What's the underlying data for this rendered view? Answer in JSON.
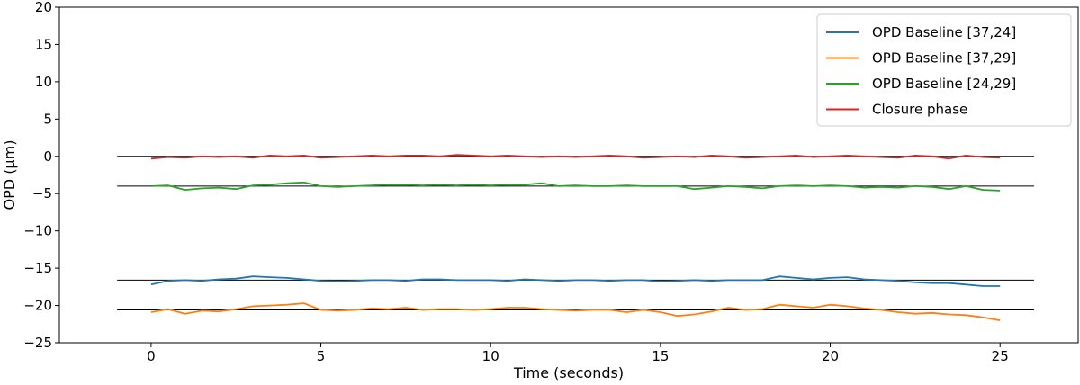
{
  "chart_data": {
    "type": "line",
    "xlabel": "Time (seconds)",
    "ylabel": "OPD (μm)",
    "xlim": [
      -2.7,
      27.3
    ],
    "ylim": [
      -25,
      20
    ],
    "xticks": [
      "0",
      "5",
      "10",
      "15",
      "20",
      "25"
    ],
    "xtick_values": [
      0,
      5,
      10,
      15,
      20,
      25
    ],
    "yticks": [
      "20",
      "15",
      "10",
      "5",
      "0",
      "−5",
      "−10",
      "−15",
      "−20",
      "−25"
    ],
    "ytick_values": [
      20,
      15,
      10,
      5,
      0,
      -5,
      -10,
      -15,
      -20,
      -25
    ],
    "grid": false,
    "legend_position": "top-right",
    "reference_lines": [
      {
        "y": 0,
        "x_range": [
          -1,
          26
        ],
        "color": "#000000"
      },
      {
        "y": -4,
        "x_range": [
          -1,
          26
        ],
        "color": "#000000"
      },
      {
        "y": -16.6,
        "x_range": [
          -1,
          26
        ],
        "color": "#000000"
      },
      {
        "y": -20.6,
        "x_range": [
          -1,
          26
        ],
        "color": "#000000"
      }
    ],
    "series": [
      {
        "name": "OPD Baseline [37,24]",
        "color": "#1f77b4",
        "x": [
          0,
          0.5,
          1,
          1.5,
          2,
          2.5,
          3,
          3.5,
          4,
          4.5,
          5,
          5.5,
          6,
          6.5,
          7,
          7.5,
          8,
          8.5,
          9,
          9.5,
          10,
          10.5,
          11,
          11.5,
          12,
          12.5,
          13,
          13.5,
          14,
          14.5,
          15,
          15.5,
          16,
          16.5,
          17,
          17.5,
          18,
          18.5,
          19,
          19.5,
          20,
          20.5,
          21,
          21.5,
          22,
          22.5,
          23,
          23.5,
          24,
          24.5,
          25
        ],
        "y": [
          -17.2,
          -16.7,
          -16.6,
          -16.7,
          -16.5,
          -16.4,
          -16.1,
          -16.2,
          -16.3,
          -16.5,
          -16.7,
          -16.8,
          -16.7,
          -16.6,
          -16.6,
          -16.7,
          -16.5,
          -16.5,
          -16.6,
          -16.6,
          -16.6,
          -16.7,
          -16.5,
          -16.6,
          -16.7,
          -16.6,
          -16.6,
          -16.7,
          -16.6,
          -16.6,
          -16.8,
          -16.7,
          -16.6,
          -16.7,
          -16.6,
          -16.6,
          -16.6,
          -16.1,
          -16.3,
          -16.5,
          -16.3,
          -16.2,
          -16.5,
          -16.6,
          -16.7,
          -16.9,
          -17.0,
          -17.0,
          -17.2,
          -17.4,
          -17.4
        ]
      },
      {
        "name": "OPD Baseline [37,29]",
        "color": "#ff7f0e",
        "x": [
          0,
          0.5,
          1,
          1.5,
          2,
          2.5,
          3,
          3.5,
          4,
          4.5,
          5,
          5.5,
          6,
          6.5,
          7,
          7.5,
          8,
          8.5,
          9,
          9.5,
          10,
          10.5,
          11,
          11.5,
          12,
          12.5,
          13,
          13.5,
          14,
          14.5,
          15,
          15.5,
          16,
          16.5,
          17,
          17.5,
          18,
          18.5,
          19,
          19.5,
          20,
          20.5,
          21,
          21.5,
          22,
          22.5,
          23,
          23.5,
          24,
          24.5,
          25
        ],
        "y": [
          -20.9,
          -20.5,
          -21.1,
          -20.7,
          -20.8,
          -20.5,
          -20.1,
          -20.0,
          -19.9,
          -19.7,
          -20.6,
          -20.7,
          -20.6,
          -20.4,
          -20.5,
          -20.3,
          -20.6,
          -20.5,
          -20.5,
          -20.6,
          -20.5,
          -20.3,
          -20.3,
          -20.5,
          -20.6,
          -20.7,
          -20.6,
          -20.6,
          -20.9,
          -20.6,
          -20.9,
          -21.4,
          -21.2,
          -20.8,
          -20.3,
          -20.6,
          -20.5,
          -19.9,
          -20.1,
          -20.3,
          -19.9,
          -20.1,
          -20.4,
          -20.6,
          -20.9,
          -21.1,
          -21.0,
          -21.2,
          -21.3,
          -21.6,
          -22.0
        ]
      },
      {
        "name": "OPD Baseline [24,29]",
        "color": "#2ca02c",
        "x": [
          0,
          0.5,
          1,
          1.5,
          2,
          2.5,
          3,
          3.5,
          4,
          4.5,
          5,
          5.5,
          6,
          6.5,
          7,
          7.5,
          8,
          8.5,
          9,
          9.5,
          10,
          10.5,
          11,
          11.5,
          12,
          12.5,
          13,
          13.5,
          14,
          14.5,
          15,
          15.5,
          16,
          16.5,
          17,
          17.5,
          18,
          18.5,
          19,
          19.5,
          20,
          20.5,
          21,
          21.5,
          22,
          22.5,
          23,
          23.5,
          24,
          24.5,
          25
        ],
        "y": [
          -4.0,
          -3.9,
          -4.5,
          -4.3,
          -4.2,
          -4.4,
          -3.9,
          -3.8,
          -3.6,
          -3.5,
          -4.0,
          -4.1,
          -4.0,
          -3.9,
          -3.8,
          -3.8,
          -3.9,
          -3.8,
          -3.9,
          -3.8,
          -3.9,
          -3.8,
          -3.8,
          -3.6,
          -4.0,
          -3.9,
          -4.0,
          -4.0,
          -3.9,
          -4.0,
          -4.0,
          -4.0,
          -4.4,
          -4.2,
          -4.0,
          -4.1,
          -4.3,
          -4.0,
          -3.9,
          -4.0,
          -3.9,
          -4.0,
          -4.2,
          -4.1,
          -4.2,
          -4.0,
          -4.1,
          -4.4,
          -4.0,
          -4.5,
          -4.6
        ]
      },
      {
        "name": "Closure phase",
        "color": "#d62728",
        "x": [
          0,
          0.5,
          1,
          1.5,
          2,
          2.5,
          3,
          3.5,
          4,
          4.5,
          5,
          5.5,
          6,
          6.5,
          7,
          7.5,
          8,
          8.5,
          9,
          9.5,
          10,
          10.5,
          11,
          11.5,
          12,
          12.5,
          13,
          13.5,
          14,
          14.5,
          15,
          15.5,
          16,
          16.5,
          17,
          17.5,
          18,
          18.5,
          19,
          19.5,
          20,
          20.5,
          21,
          21.5,
          22,
          22.5,
          23,
          23.5,
          24,
          24.5,
          25
        ],
        "y": [
          -0.3,
          -0.1,
          -0.2,
          0.0,
          -0.1,
          0.0,
          -0.2,
          0.1,
          0.0,
          0.1,
          -0.2,
          -0.1,
          0.0,
          0.1,
          0.0,
          0.1,
          0.1,
          0.0,
          0.2,
          0.1,
          0.0,
          0.1,
          0.0,
          -0.1,
          0.0,
          -0.1,
          0.0,
          0.1,
          0.0,
          -0.2,
          -0.1,
          0.0,
          -0.1,
          0.1,
          0.0,
          -0.2,
          -0.1,
          0.0,
          0.1,
          -0.1,
          0.0,
          0.1,
          0.0,
          -0.1,
          -0.2,
          0.1,
          0.0,
          -0.3,
          0.1,
          -0.1,
          -0.2
        ]
      }
    ]
  }
}
